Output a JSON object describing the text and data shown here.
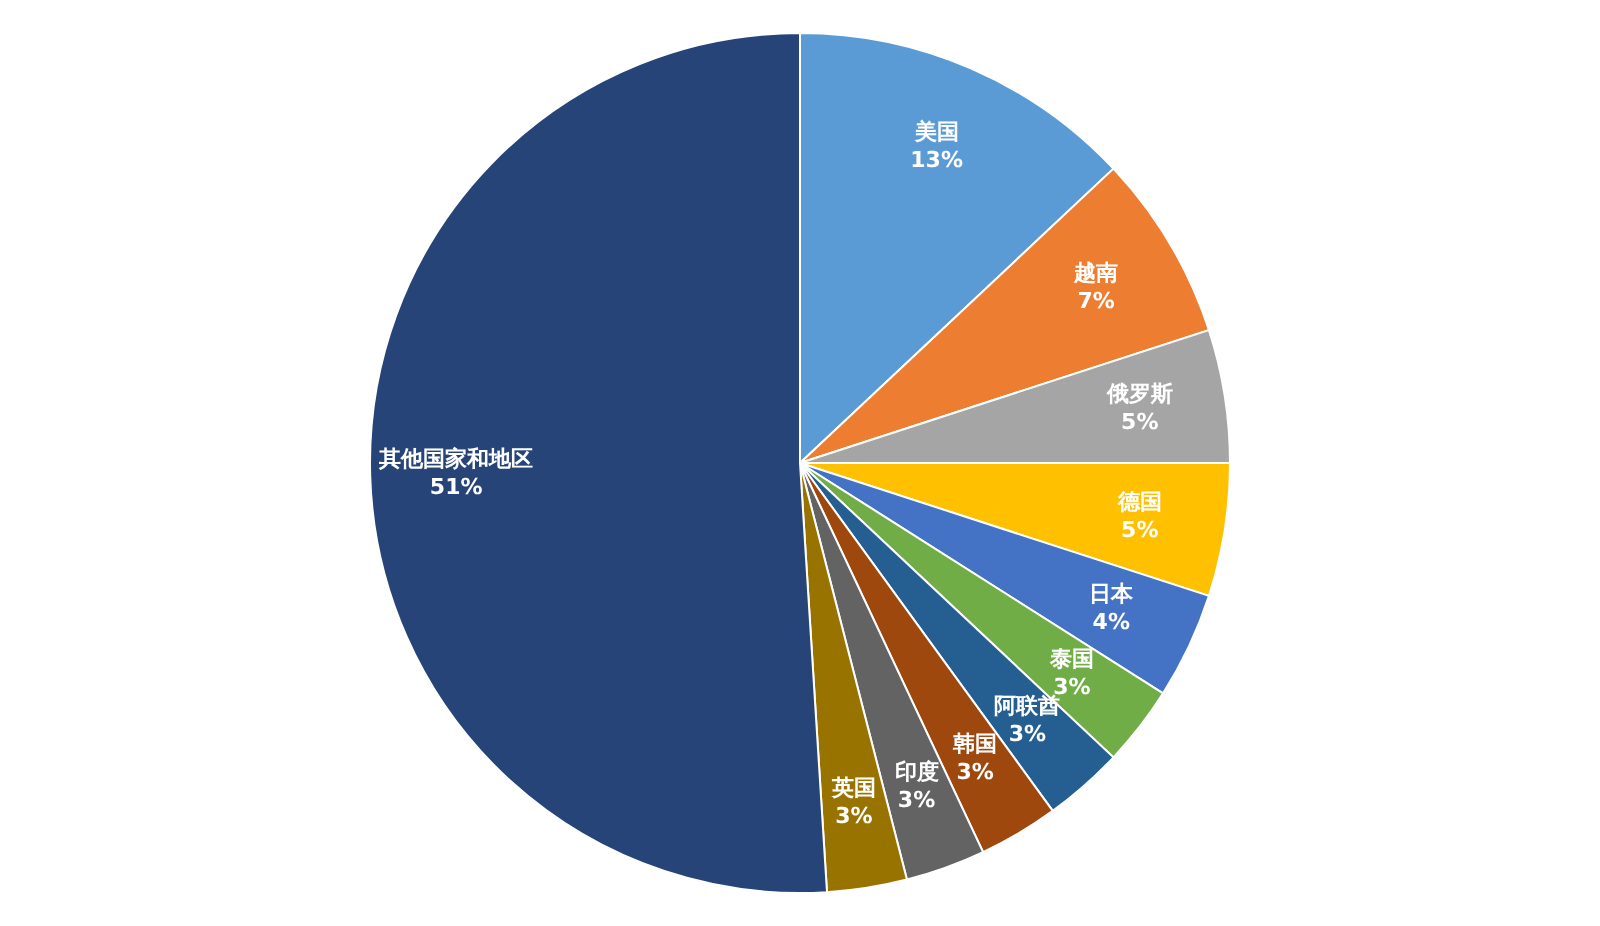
{
  "chart_data": {
    "type": "pie",
    "categories": [
      "美国",
      "越南",
      "俄罗斯",
      "德国",
      "日本",
      "泰国",
      "阿联酋",
      "韩国",
      "印度",
      "英国",
      "其他国家和地区"
    ],
    "values": [
      13,
      7,
      5,
      5,
      4,
      3,
      3,
      3,
      3,
      3,
      51
    ],
    "value_labels": [
      "13%",
      "7%",
      "5%",
      "5%",
      "4%",
      "3%",
      "3%",
      "3%",
      "3%",
      "3%",
      "51%"
    ],
    "colors": [
      "#5b9bd5",
      "#ed7d31",
      "#a5a5a5",
      "#ffc000",
      "#4472c4",
      "#70ad47",
      "#255e91",
      "#9e480e",
      "#636363",
      "#997300",
      "#264478"
    ],
    "legend": false
  }
}
